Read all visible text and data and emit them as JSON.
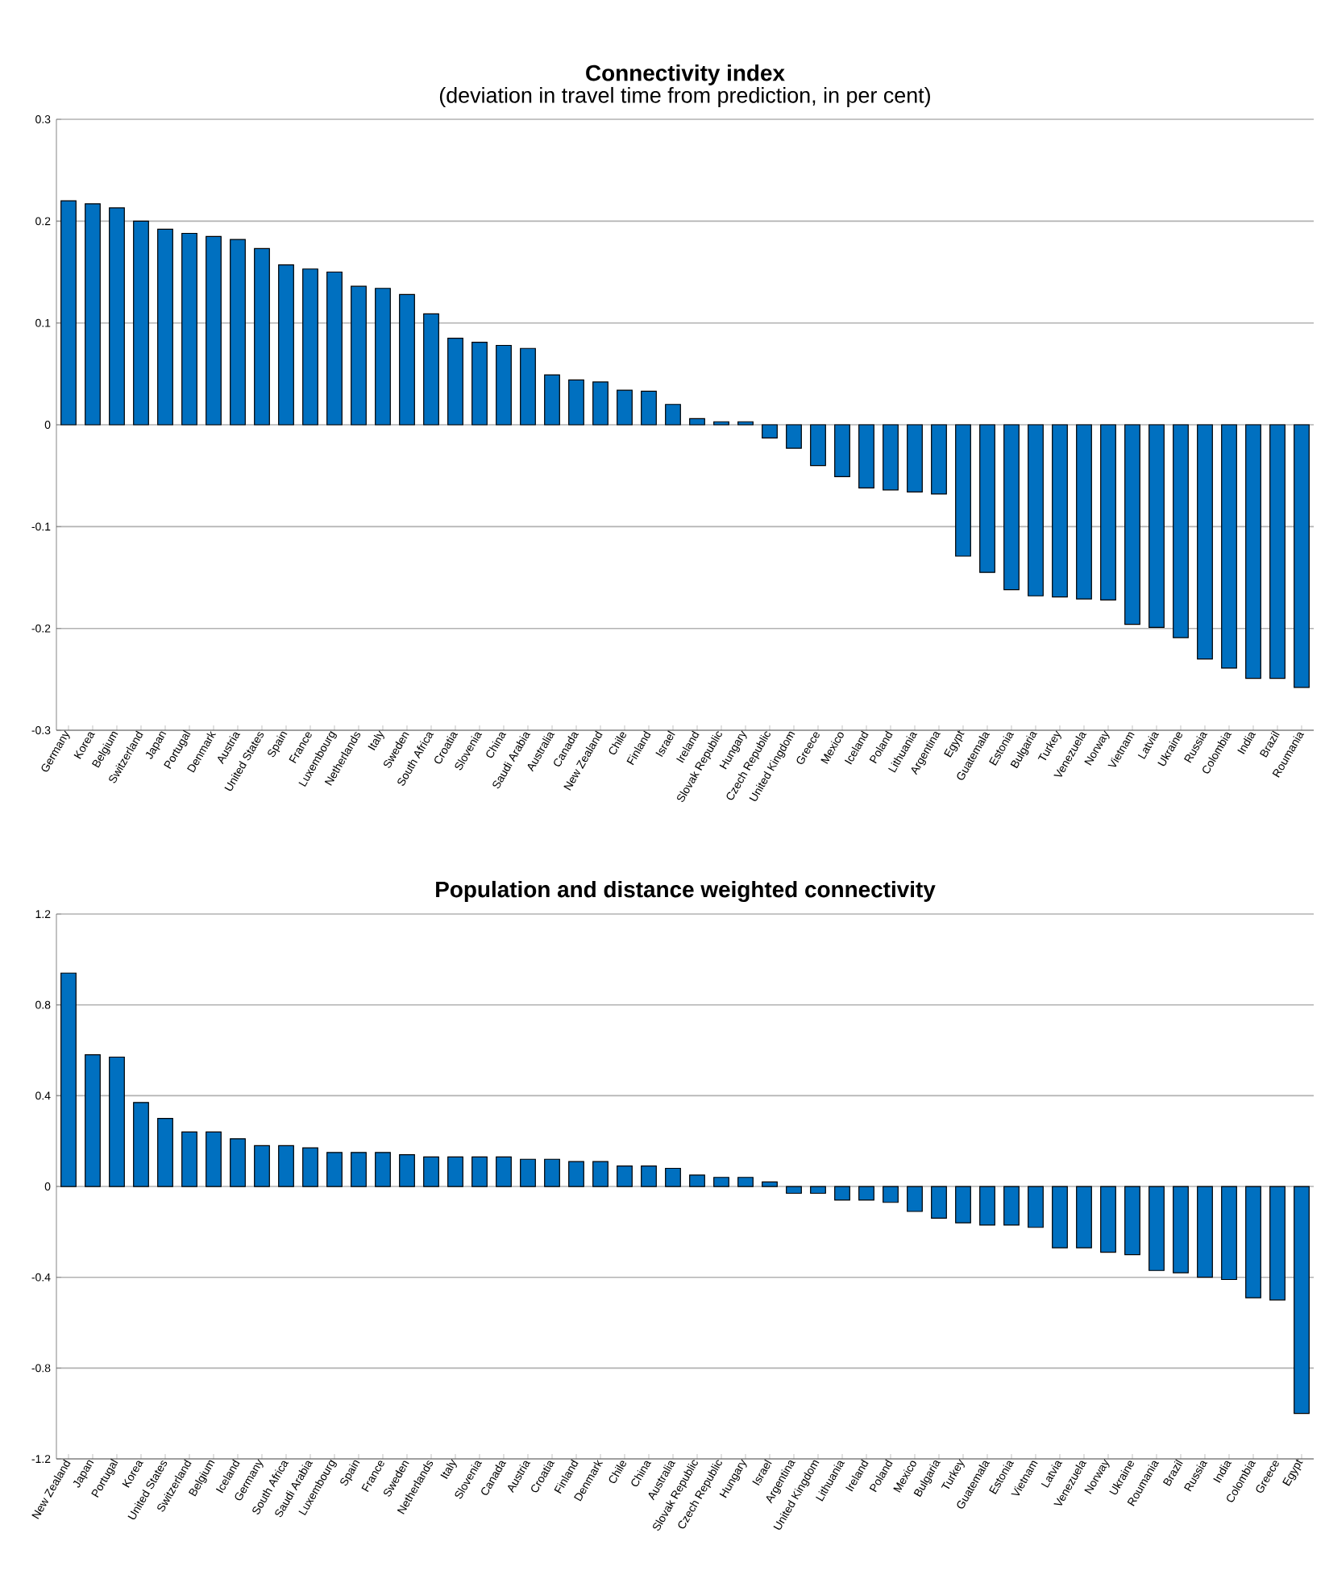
{
  "chart_data": [
    {
      "type": "bar",
      "title": "Connectivity index",
      "subtitle": "(deviation in travel time from prediction, in per cent)",
      "color": "#0070c0",
      "grid": "y",
      "ylim": [
        -0.3,
        0.3
      ],
      "yticks": [
        -0.3,
        -0.2,
        -0.1,
        0,
        0.1,
        0.2,
        0.3
      ],
      "categories": [
        "Germany",
        "Korea",
        "Belgium",
        "Switzerland",
        "Japan",
        "Portugal",
        "Denmark",
        "Austria",
        "United States",
        "Spain",
        "France",
        "Luxembourg",
        "Netherlands",
        "Italy",
        "Sweden",
        "South Africa",
        "Croatia",
        "Slovenia",
        "China",
        "Saudi Arabia",
        "Australia",
        "Canada",
        "New Zealand",
        "Chile",
        "Finland",
        "Israel",
        "Ireland",
        "Slovak Republic",
        "Hungary",
        "Czech Republic",
        "United Kingdom",
        "Greece",
        "Mexico",
        "Iceland",
        "Poland",
        "Lithuania",
        "Argentina",
        "Egypt",
        "Guatemala",
        "Estonia",
        "Bulgaria",
        "Turkey",
        "Venezuela",
        "Norway",
        "Vietnam",
        "Latvia",
        "Ukraine",
        "Russia",
        "Colombia",
        "India",
        "Brazil",
        "Roumania"
      ],
      "values": [
        0.22,
        0.217,
        0.213,
        0.2,
        0.192,
        0.188,
        0.185,
        0.182,
        0.173,
        0.157,
        0.153,
        0.15,
        0.136,
        0.134,
        0.128,
        0.109,
        0.085,
        0.081,
        0.078,
        0.075,
        0.049,
        0.044,
        0.042,
        0.034,
        0.033,
        0.02,
        0.006,
        0.003,
        0.003,
        -0.013,
        -0.023,
        -0.04,
        -0.051,
        -0.062,
        -0.064,
        -0.066,
        -0.068,
        -0.129,
        -0.145,
        -0.162,
        -0.168,
        -0.169,
        -0.171,
        -0.172,
        -0.196,
        -0.199,
        -0.209,
        -0.23,
        -0.239,
        -0.249,
        -0.249,
        -0.258
      ]
    },
    {
      "type": "bar",
      "title": "Population and distance weighted connectivity",
      "color": "#0070c0",
      "grid": "y",
      "ylim": [
        -1.2,
        1.2
      ],
      "yticks": [
        -1.2,
        -0.8,
        -0.4,
        0,
        0.4,
        0.8,
        1.2
      ],
      "categories": [
        "New Zealand",
        "Japan",
        "Portugal",
        "Korea",
        "United States",
        "Switzerland",
        "Belgium",
        "Iceland",
        "Germany",
        "South Africa",
        "Saudi Arabia",
        "Luxembourg",
        "Spain",
        "France",
        "Sweden",
        "Netherlands",
        "Italy",
        "Slovenia",
        "Canada",
        "Austria",
        "Croatia",
        "Finland",
        "Denmark",
        "Chile",
        "China",
        "Australia",
        "Slovak Republic",
        "Czech Republic",
        "Hungary",
        "Israel",
        "Argentina",
        "United Kingdom",
        "Lithuania",
        "Ireland",
        "Poland",
        "Mexico",
        "Bulgaria",
        "Turkey",
        "Guatemala",
        "Estonia",
        "Vietnam",
        "Latvia",
        "Venezuela",
        "Norway",
        "Ukraine",
        "Roumania",
        "Brazil",
        "Russia",
        "India",
        "Colombia",
        "Greece",
        "Egypt"
      ],
      "values": [
        0.94,
        0.58,
        0.57,
        0.37,
        0.3,
        0.24,
        0.24,
        0.21,
        0.18,
        0.18,
        0.17,
        0.15,
        0.15,
        0.15,
        0.14,
        0.13,
        0.13,
        0.13,
        0.13,
        0.12,
        0.12,
        0.11,
        0.11,
        0.09,
        0.09,
        0.08,
        0.05,
        0.04,
        0.04,
        0.02,
        -0.03,
        -0.03,
        -0.06,
        -0.06,
        -0.07,
        -0.11,
        -0.14,
        -0.16,
        -0.17,
        -0.17,
        -0.18,
        -0.27,
        -0.27,
        -0.29,
        -0.3,
        -0.37,
        -0.38,
        -0.4,
        -0.41,
        -0.49,
        -0.5,
        -1.0
      ]
    }
  ]
}
